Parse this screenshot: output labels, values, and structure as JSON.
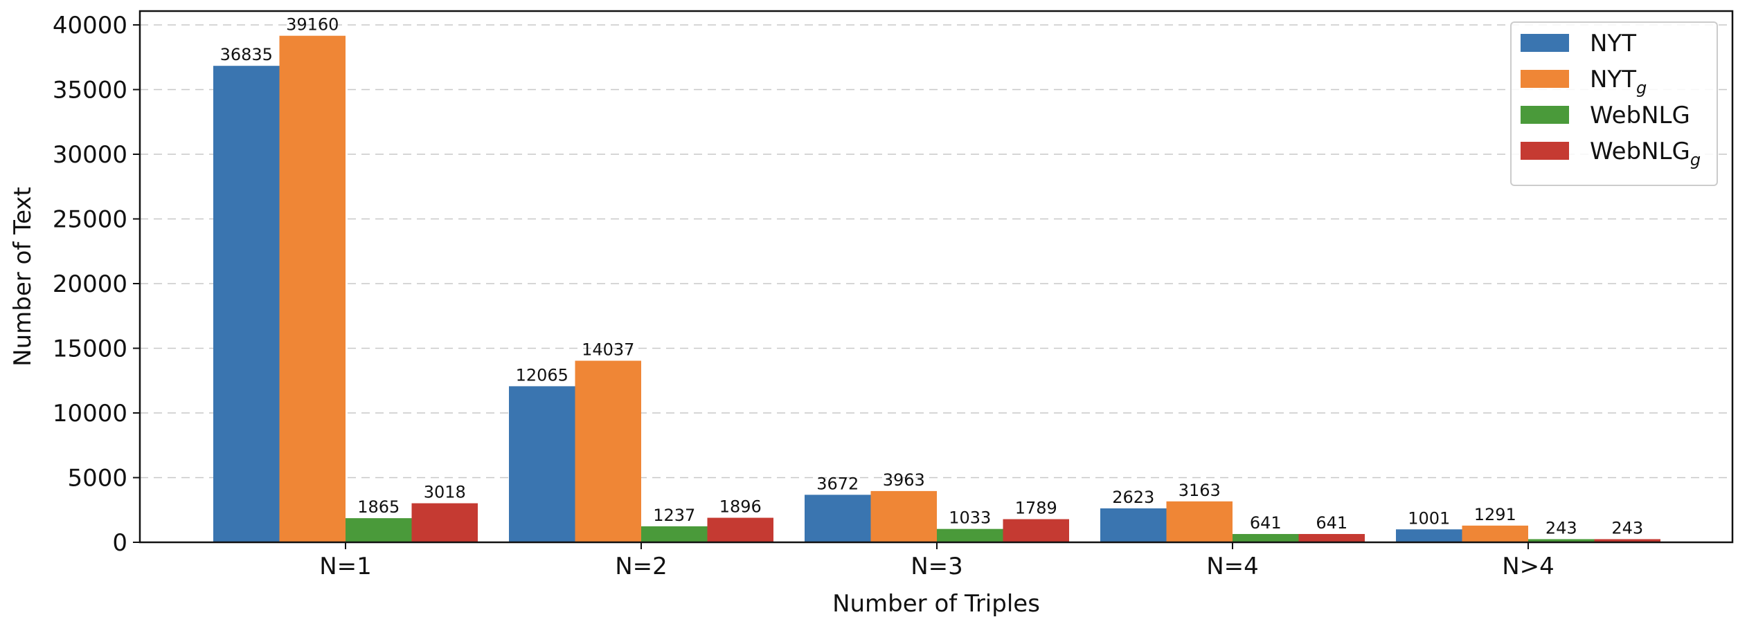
{
  "chart_data": {
    "type": "bar",
    "title": "",
    "xlabel": "Number of Triples",
    "ylabel": "Number of Text",
    "categories": [
      "N=1",
      "N=2",
      "N=3",
      "N=4",
      "N>4"
    ],
    "ylim": [
      0,
      40000
    ],
    "yticks": [
      0,
      5000,
      10000,
      15000,
      20000,
      25000,
      30000,
      35000,
      40000
    ],
    "grid": "horizontal dashed",
    "legend_position": "top-right",
    "series": [
      {
        "name": "NYT",
        "legend_base": "NYT",
        "legend_sub": "",
        "color": "#3a75b0",
        "values": [
          36835,
          12065,
          3672,
          2623,
          1001
        ]
      },
      {
        "name": "NYTg",
        "legend_base": "NYT",
        "legend_sub": "g",
        "color": "#ef8636",
        "values": [
          39160,
          14037,
          3963,
          3163,
          1291
        ]
      },
      {
        "name": "WebNLG",
        "legend_base": "WebNLG",
        "legend_sub": "",
        "color": "#4a9a3a",
        "values": [
          1865,
          1237,
          1033,
          641,
          243
        ]
      },
      {
        "name": "WebNLGg",
        "legend_base": "WebNLG",
        "legend_sub": "g",
        "color": "#c53a32",
        "values": [
          3018,
          1896,
          1789,
          641,
          243
        ]
      }
    ]
  }
}
